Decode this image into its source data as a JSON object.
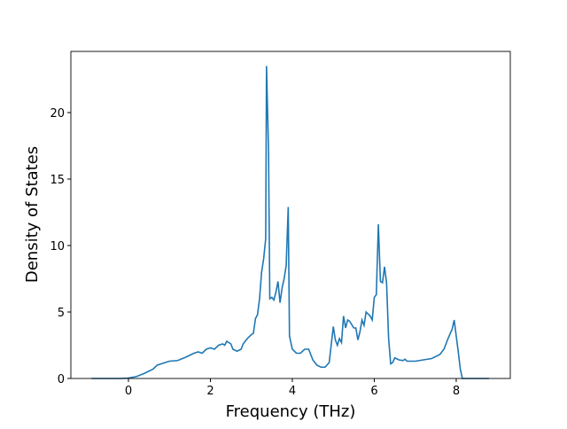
{
  "chart_data": {
    "type": "line",
    "xlabel": "Frequency (THz)",
    "ylabel": "Density of States",
    "color": "#1f77b4",
    "grid": false,
    "xlim": [
      -1.405,
      9.32
    ],
    "ylim": [
      0,
      24.6
    ],
    "xticks": [
      0,
      2,
      4,
      6,
      8
    ],
    "yticks": [
      0,
      5,
      10,
      15,
      20
    ],
    "x": [
      -0.9,
      -0.2,
      0,
      0.2,
      0.4,
      0.6,
      0.7,
      0.9,
      1.0,
      1.2,
      1.4,
      1.6,
      1.7,
      1.8,
      1.9,
      2.0,
      2.1,
      2.2,
      2.3,
      2.35,
      2.4,
      2.5,
      2.55,
      2.65,
      2.75,
      2.8,
      2.9,
      3.0,
      3.05,
      3.1,
      3.15,
      3.2,
      3.25,
      3.3,
      3.35,
      3.37,
      3.42,
      3.45,
      3.5,
      3.55,
      3.6,
      3.65,
      3.7,
      3.75,
      3.8,
      3.85,
      3.9,
      3.93,
      4.0,
      4.1,
      4.2,
      4.3,
      4.4,
      4.5,
      4.6,
      4.7,
      4.8,
      4.9,
      5.0,
      5.05,
      5.1,
      5.15,
      5.2,
      5.25,
      5.3,
      5.35,
      5.4,
      5.5,
      5.55,
      5.6,
      5.65,
      5.7,
      5.75,
      5.8,
      5.9,
      5.95,
      6.0,
      6.05,
      6.1,
      6.15,
      6.2,
      6.25,
      6.3,
      6.35,
      6.4,
      6.45,
      6.5,
      6.6,
      6.7,
      6.75,
      6.8,
      7.0,
      7.2,
      7.4,
      7.6,
      7.7,
      7.8,
      7.9,
      7.95,
      8.0,
      8.05,
      8.1,
      8.15,
      8.8
    ],
    "values": [
      0,
      0,
      0.03,
      0.15,
      0.4,
      0.7,
      1.0,
      1.2,
      1.3,
      1.35,
      1.6,
      1.9,
      2.0,
      1.9,
      2.2,
      2.3,
      2.2,
      2.5,
      2.6,
      2.5,
      2.8,
      2.6,
      2.2,
      2.05,
      2.2,
      2.6,
      3.0,
      3.3,
      3.4,
      4.5,
      4.8,
      6.0,
      8.0,
      9.0,
      10.5,
      23.5,
      17,
      6,
      6.1,
      5.9,
      6.5,
      7.3,
      5.7,
      6.8,
      7.5,
      8.5,
      12.9,
      3.2,
      2.2,
      1.9,
      1.9,
      2.2,
      2.2,
      1.4,
      1.0,
      0.85,
      0.85,
      1.2,
      3.9,
      2.9,
      2.5,
      3.0,
      2.7,
      4.7,
      3.8,
      4.4,
      4.3,
      3.8,
      3.8,
      2.9,
      3.5,
      4.4,
      4.0,
      5.0,
      4.7,
      4.4,
      6.1,
      6.3,
      11.6,
      7.3,
      7.2,
      8.4,
      7.2,
      3.0,
      1.1,
      1.2,
      1.55,
      1.4,
      1.35,
      1.45,
      1.3,
      1.3,
      1.4,
      1.5,
      1.8,
      2.2,
      3.0,
      3.7,
      4.4,
      3.2,
      2.0,
      0.7,
      0,
      0
    ]
  }
}
